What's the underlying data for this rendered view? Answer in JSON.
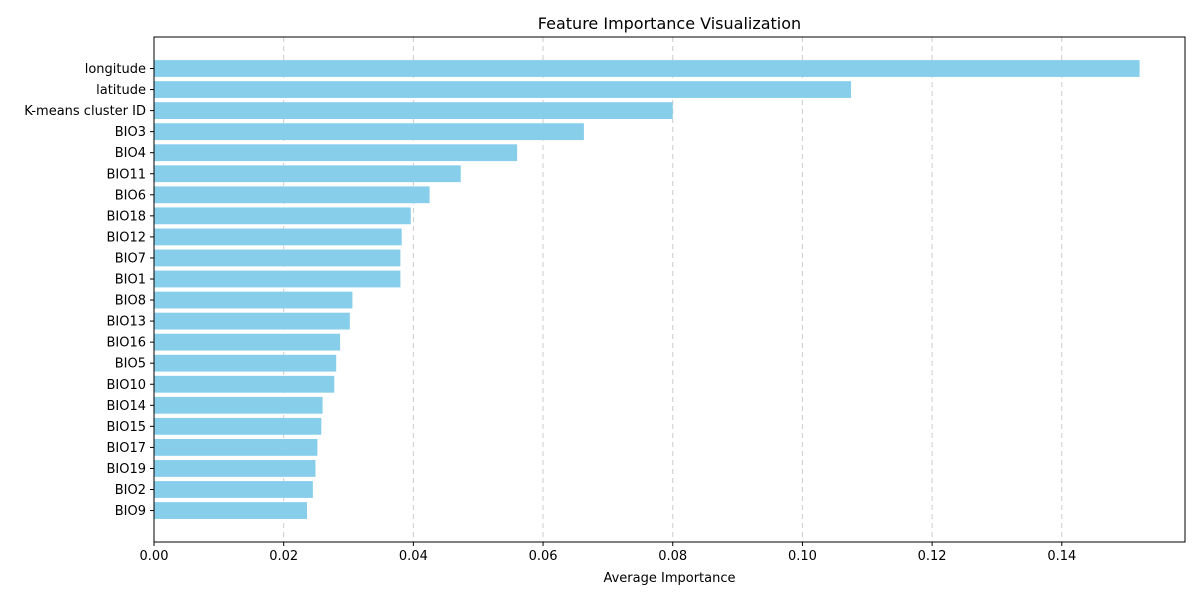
{
  "chart_data": {
    "type": "bar",
    "orientation": "horizontal",
    "title": "Feature Importance Visualization",
    "xlabel": "Average Importance",
    "ylabel": "",
    "xlim": [
      0,
      0.159
    ],
    "xticks": [
      0.0,
      0.02,
      0.04,
      0.06,
      0.08,
      0.1,
      0.12,
      0.14
    ],
    "xtick_labels": [
      "0.00",
      "0.02",
      "0.04",
      "0.06",
      "0.08",
      "0.10",
      "0.12",
      "0.14"
    ],
    "grid": "x-dashed",
    "bar_color": "#87CEEB",
    "categories": [
      "longitude",
      "latitude",
      "K-means cluster ID",
      "BIO3",
      "BIO4",
      "BIO11",
      "BIO6",
      "BIO18",
      "BIO12",
      "BIO7",
      "BIO1",
      "BIO8",
      "BIO13",
      "BIO16",
      "BIO5",
      "BIO10",
      "BIO14",
      "BIO15",
      "BIO17",
      "BIO19",
      "BIO2",
      "BIO9"
    ],
    "values": [
      0.152,
      0.1075,
      0.08,
      0.0663,
      0.056,
      0.0473,
      0.0425,
      0.0396,
      0.0382,
      0.038,
      0.038,
      0.0306,
      0.0302,
      0.0287,
      0.0281,
      0.0278,
      0.026,
      0.0258,
      0.0252,
      0.0249,
      0.0245,
      0.0236
    ]
  }
}
